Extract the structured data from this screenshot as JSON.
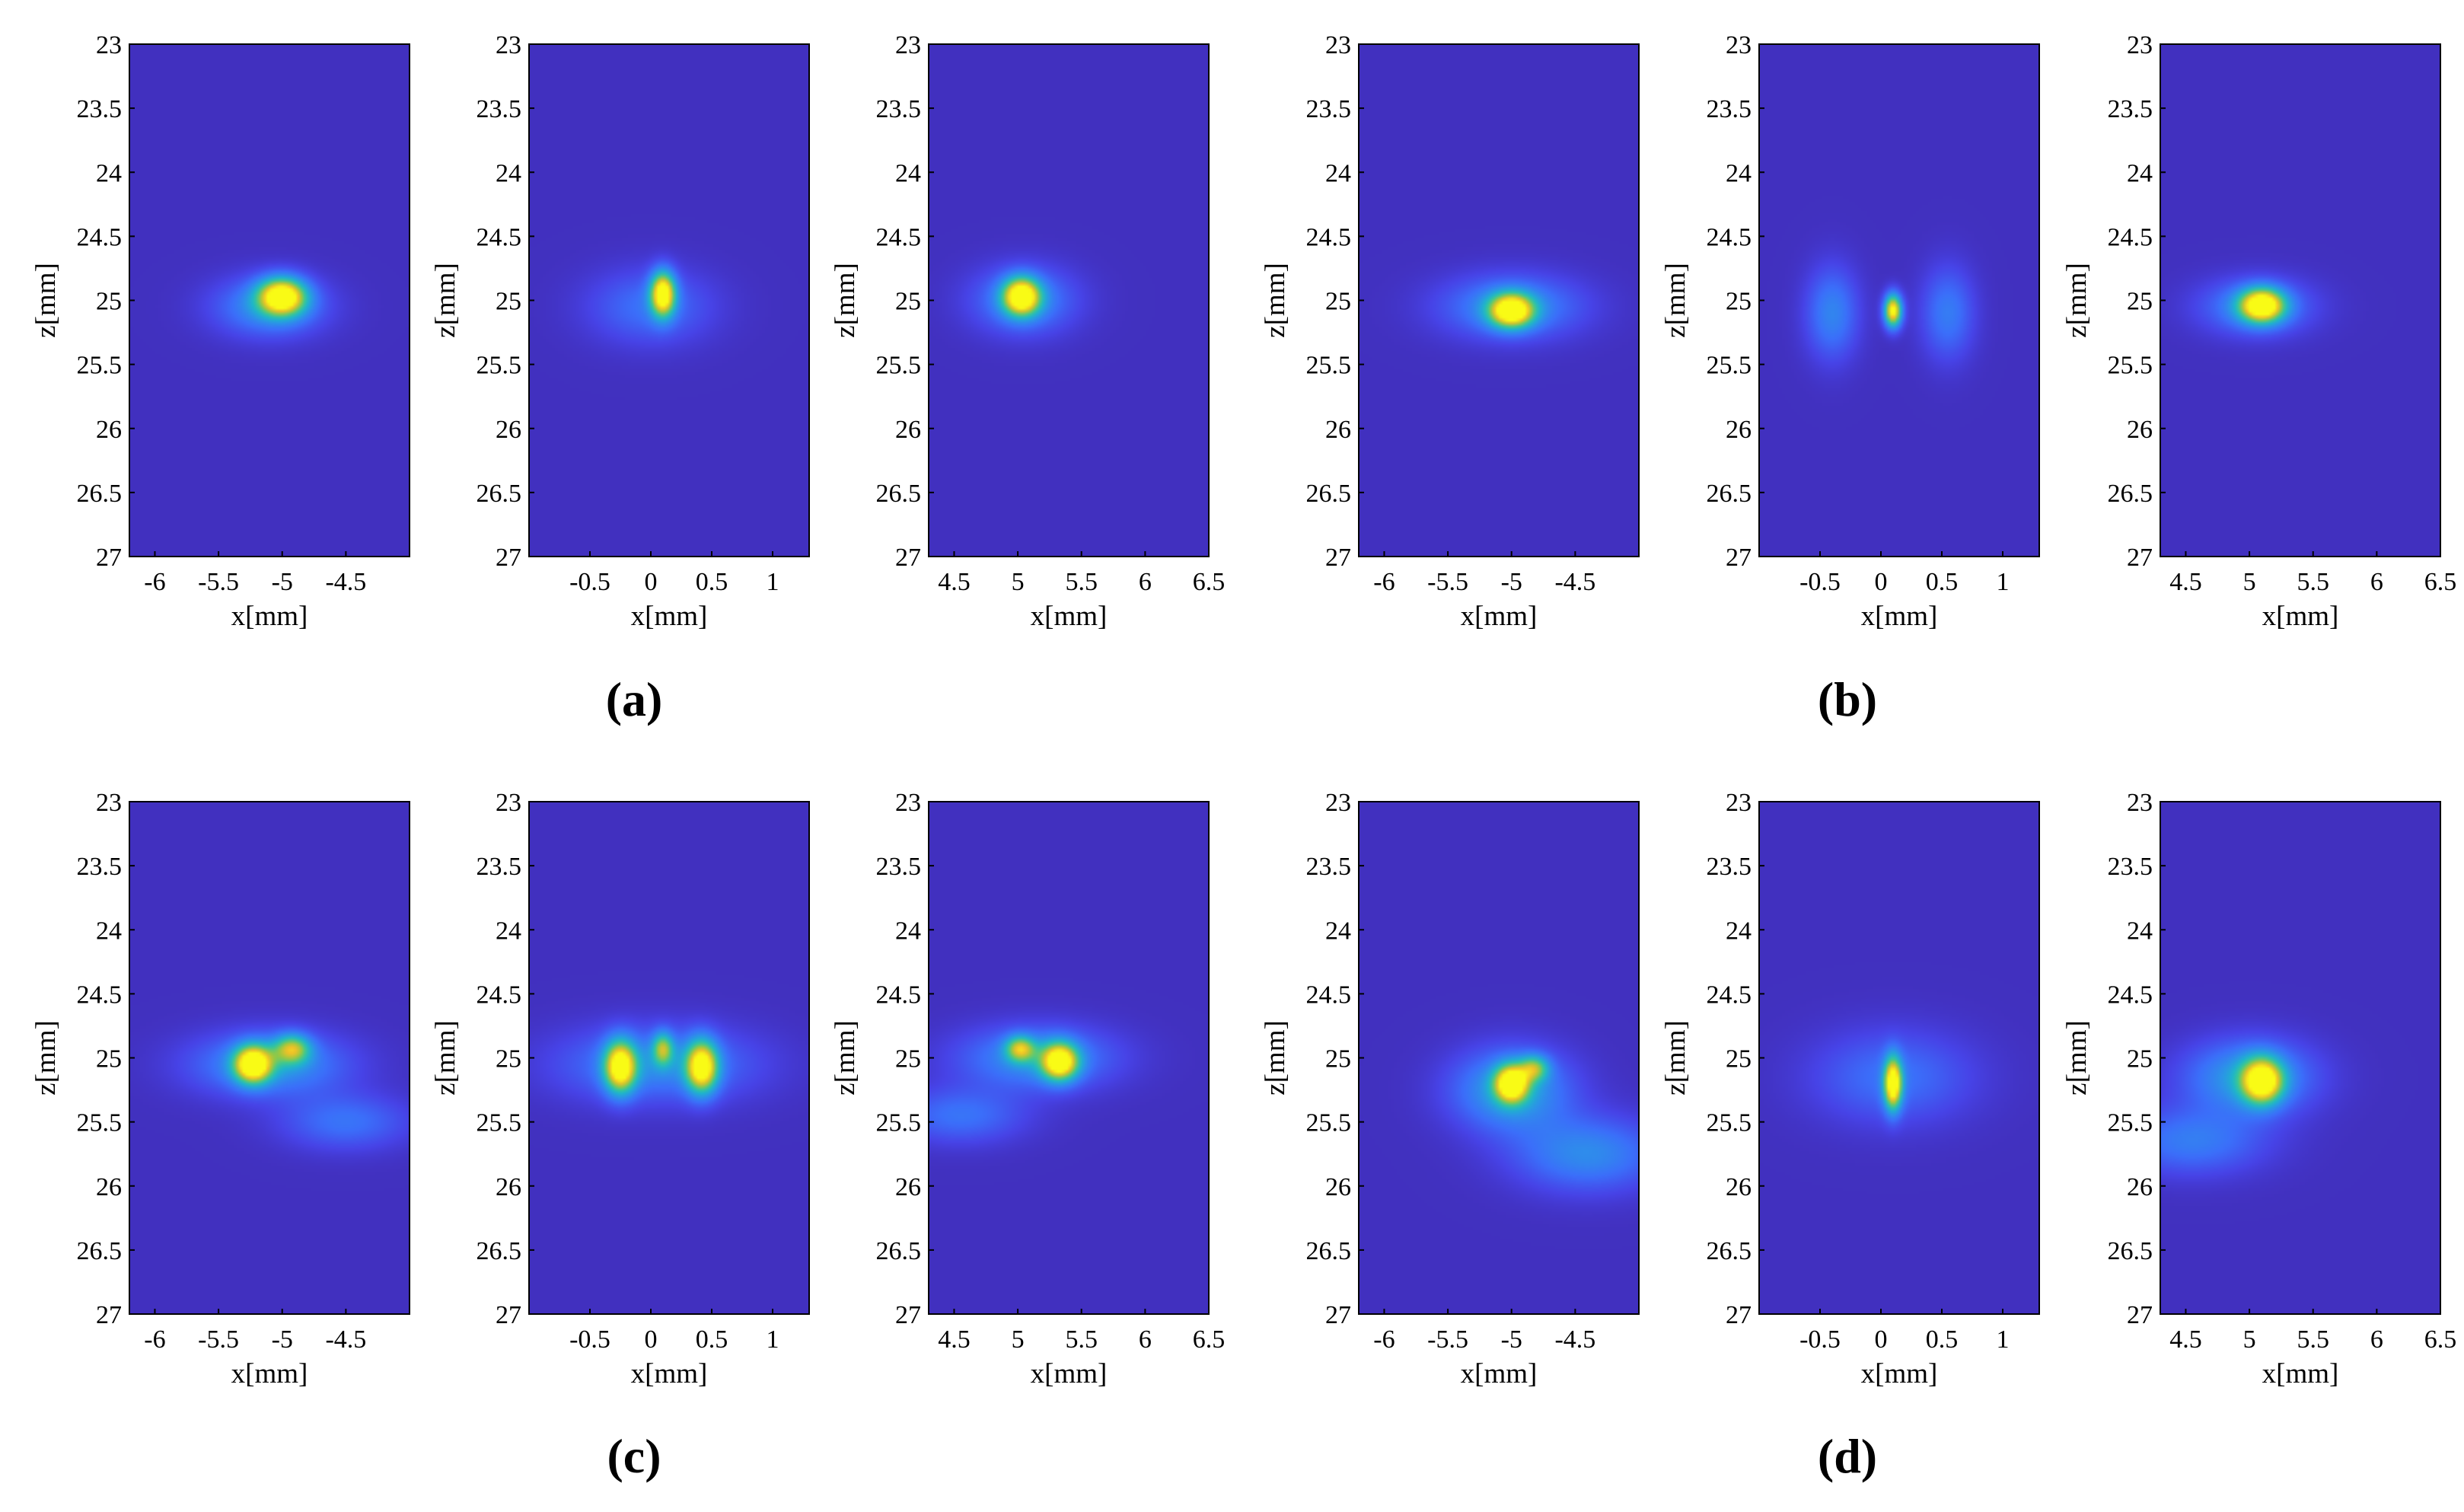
{
  "figure": {
    "captions": [
      "(a)",
      "(b)",
      "(c)",
      "(d)"
    ]
  },
  "colormap": [
    "#3e26a8",
    "#4743e7",
    "#3b6ffa",
    "#2c93e8",
    "#1eb5cb",
    "#3dc891",
    "#9cc83f",
    "#f0c128",
    "#f9fb15"
  ],
  "chart_data": [
    {
      "type": "heatmap",
      "id": "a1",
      "row": 0,
      "col": 0,
      "xlabel": "x[mm]",
      "ylabel": "z[mm]",
      "xlim": [
        -6.2,
        -4.0
      ],
      "ylim": [
        23,
        27
      ],
      "xticks": [
        -6,
        -5.5,
        -5,
        -4.5
      ],
      "xtick_labels": [
        "-6",
        "-5.5",
        "-5",
        "-4.5"
      ],
      "yticks": [
        23,
        23.5,
        24,
        24.5,
        25,
        25.5,
        26,
        26.5,
        27
      ],
      "ytick_labels": [
        "23",
        "23.5",
        "24",
        "24.5",
        "25",
        "25.5",
        "26",
        "26.5",
        "27"
      ],
      "peaks": [
        {
          "x": -5.0,
          "z": 24.97,
          "sx": 0.13,
          "sz": 0.1,
          "amp": 1.0
        },
        {
          "x": -5.1,
          "z": 25.05,
          "sx": 0.3,
          "sz": 0.16,
          "amp": 0.32
        }
      ]
    },
    {
      "type": "heatmap",
      "id": "a2",
      "row": 0,
      "col": 1,
      "xlabel": "x[mm]",
      "ylabel": "z[mm]",
      "xlim": [
        -1.0,
        1.3
      ],
      "ylim": [
        23,
        27
      ],
      "xticks": [
        -0.5,
        0,
        0.5,
        1
      ],
      "xtick_labels": [
        "-0.5",
        "0",
        "0.5",
        "1"
      ],
      "yticks": [
        23,
        23.5,
        24,
        24.5,
        25,
        25.5,
        26,
        26.5,
        27
      ],
      "ytick_labels": [
        "23",
        "23.5",
        "24",
        "24.5",
        "25",
        "25.5",
        "26",
        "26.5",
        "27"
      ],
      "peaks": [
        {
          "x": 0.1,
          "z": 24.95,
          "sx": 0.07,
          "sz": 0.12,
          "amp": 1.0
        },
        {
          "x": 0.0,
          "z": 25.05,
          "sx": 0.35,
          "sz": 0.2,
          "amp": 0.22
        }
      ]
    },
    {
      "type": "heatmap",
      "id": "a3",
      "row": 0,
      "col": 2,
      "xlabel": "x[mm]",
      "ylabel": "z[mm]",
      "xlim": [
        4.3,
        6.5
      ],
      "ylim": [
        23,
        27
      ],
      "xticks": [
        4.5,
        5,
        5.5,
        6,
        6.5
      ],
      "xtick_labels": [
        "4.5",
        "5",
        "5.5",
        "6",
        "6.5"
      ],
      "yticks": [
        23,
        23.5,
        24,
        24.5,
        25,
        25.5,
        26,
        26.5,
        27
      ],
      "ytick_labels": [
        "23",
        "23.5",
        "24",
        "24.5",
        "25",
        "25.5",
        "26",
        "26.5",
        "27"
      ],
      "peaks": [
        {
          "x": 5.03,
          "z": 24.97,
          "sx": 0.1,
          "sz": 0.1,
          "amp": 1.0
        },
        {
          "x": 5.05,
          "z": 25.0,
          "sx": 0.28,
          "sz": 0.18,
          "amp": 0.3
        }
      ]
    },
    {
      "type": "heatmap",
      "id": "b1",
      "row": 0,
      "col": 3,
      "xlabel": "x[mm]",
      "ylabel": "z[mm]",
      "xlim": [
        -6.2,
        -4.0
      ],
      "ylim": [
        23,
        27
      ],
      "xticks": [
        -6,
        -5.5,
        -5,
        -4.5
      ],
      "xtick_labels": [
        "-6",
        "-5.5",
        "-5",
        "-4.5"
      ],
      "yticks": [
        23,
        23.5,
        24,
        24.5,
        25,
        25.5,
        26,
        26.5,
        27
      ],
      "ytick_labels": [
        "23",
        "23.5",
        "24",
        "24.5",
        "25",
        "25.5",
        "26",
        "26.5",
        "27"
      ],
      "peaks": [
        {
          "x": -5.0,
          "z": 25.08,
          "sx": 0.12,
          "sz": 0.09,
          "amp": 1.0
        },
        {
          "x": -5.0,
          "z": 25.05,
          "sx": 0.38,
          "sz": 0.17,
          "amp": 0.32
        }
      ]
    },
    {
      "type": "heatmap",
      "id": "b2",
      "row": 0,
      "col": 4,
      "xlabel": "x[mm]",
      "ylabel": "z[mm]",
      "xlim": [
        -1.0,
        1.3
      ],
      "ylim": [
        23,
        27
      ],
      "xticks": [
        -0.5,
        0,
        0.5,
        1
      ],
      "xtick_labels": [
        "-0.5",
        "0",
        "0.5",
        "1"
      ],
      "yticks": [
        23,
        23.5,
        24,
        24.5,
        25,
        25.5,
        26,
        26.5,
        27
      ],
      "ytick_labels": [
        "23",
        "23.5",
        "24",
        "24.5",
        "25",
        "25.5",
        "26",
        "26.5",
        "27"
      ],
      "peaks": [
        {
          "x": 0.1,
          "z": 25.08,
          "sx": 0.05,
          "sz": 0.09,
          "amp": 1.0
        },
        {
          "x": -0.4,
          "z": 25.1,
          "sx": 0.15,
          "sz": 0.25,
          "amp": 0.28
        },
        {
          "x": 0.55,
          "z": 25.1,
          "sx": 0.15,
          "sz": 0.25,
          "amp": 0.25
        }
      ]
    },
    {
      "type": "heatmap",
      "id": "b3",
      "row": 0,
      "col": 5,
      "xlabel": "x[mm]",
      "ylabel": "z[mm]",
      "xlim": [
        4.3,
        6.5
      ],
      "ylim": [
        23,
        27
      ],
      "xticks": [
        4.5,
        5,
        5.5,
        6,
        6.5
      ],
      "xtick_labels": [
        "4.5",
        "5",
        "5.5",
        "6",
        "6.5"
      ],
      "yticks": [
        23,
        23.5,
        24,
        24.5,
        25,
        25.5,
        26,
        26.5,
        27
      ],
      "ytick_labels": [
        "23",
        "23.5",
        "24",
        "24.5",
        "25",
        "25.5",
        "26",
        "26.5",
        "27"
      ],
      "peaks": [
        {
          "x": 5.1,
          "z": 25.04,
          "sx": 0.12,
          "sz": 0.09,
          "amp": 1.0
        },
        {
          "x": 5.05,
          "z": 25.05,
          "sx": 0.3,
          "sz": 0.15,
          "amp": 0.3
        }
      ]
    },
    {
      "type": "heatmap",
      "id": "c1",
      "row": 1,
      "col": 0,
      "xlabel": "x[mm]",
      "ylabel": "z[mm]",
      "xlim": [
        -6.2,
        -4.0
      ],
      "ylim": [
        23,
        27
      ],
      "xticks": [
        -6,
        -5.5,
        -5,
        -4.5
      ],
      "xtick_labels": [
        "-6",
        "-5.5",
        "-5",
        "-4.5"
      ],
      "yticks": [
        23,
        23.5,
        24,
        24.5,
        25,
        25.5,
        26,
        26.5,
        27
      ],
      "ytick_labels": [
        "23",
        "23.5",
        "24",
        "24.5",
        "25",
        "25.5",
        "26",
        "26.5",
        "27"
      ],
      "peaks": [
        {
          "x": -5.23,
          "z": 25.05,
          "sx": 0.1,
          "sz": 0.1,
          "amp": 1.0
        },
        {
          "x": -4.92,
          "z": 24.93,
          "sx": 0.1,
          "sz": 0.08,
          "amp": 0.6
        },
        {
          "x": -5.1,
          "z": 25.05,
          "sx": 0.42,
          "sz": 0.17,
          "amp": 0.35
        },
        {
          "x": -4.5,
          "z": 25.5,
          "sx": 0.35,
          "sz": 0.15,
          "amp": 0.22
        }
      ]
    },
    {
      "type": "heatmap",
      "id": "c2",
      "row": 1,
      "col": 1,
      "xlabel": "x[mm]",
      "ylabel": "z[mm]",
      "xlim": [
        -1.0,
        1.3
      ],
      "ylim": [
        23,
        27
      ],
      "xticks": [
        -0.5,
        0,
        0.5,
        1
      ],
      "xtick_labels": [
        "-0.5",
        "0",
        "0.5",
        "1"
      ],
      "yticks": [
        23,
        23.5,
        24,
        24.5,
        25,
        25.5,
        26,
        26.5,
        27
      ],
      "ytick_labels": [
        "23",
        "23.5",
        "24",
        "24.5",
        "25",
        "25.5",
        "26",
        "26.5",
        "27"
      ],
      "peaks": [
        {
          "x": -0.25,
          "z": 25.07,
          "sx": 0.09,
          "sz": 0.14,
          "amp": 0.95
        },
        {
          "x": 0.42,
          "z": 25.07,
          "sx": 0.09,
          "sz": 0.14,
          "amp": 0.95
        },
        {
          "x": 0.1,
          "z": 24.93,
          "sx": 0.06,
          "sz": 0.09,
          "amp": 0.55
        },
        {
          "x": 0.05,
          "z": 25.05,
          "sx": 0.55,
          "sz": 0.2,
          "amp": 0.3
        }
      ]
    },
    {
      "type": "heatmap",
      "id": "c3",
      "row": 1,
      "col": 2,
      "xlabel": "x[mm]",
      "ylabel": "z[mm]",
      "xlim": [
        4.3,
        6.5
      ],
      "ylim": [
        23,
        27
      ],
      "xticks": [
        4.5,
        5,
        5.5,
        6,
        6.5
      ],
      "xtick_labels": [
        "4.5",
        "5",
        "5.5",
        "6",
        "6.5"
      ],
      "yticks": [
        23,
        23.5,
        24,
        24.5,
        25,
        25.5,
        26,
        26.5,
        27
      ],
      "ytick_labels": [
        "23",
        "23.5",
        "24",
        "24.5",
        "25",
        "25.5",
        "26",
        "26.5",
        "27"
      ],
      "peaks": [
        {
          "x": 5.33,
          "z": 25.03,
          "sx": 0.1,
          "sz": 0.1,
          "amp": 0.95
        },
        {
          "x": 5.02,
          "z": 24.93,
          "sx": 0.08,
          "sz": 0.07,
          "amp": 0.6
        },
        {
          "x": 5.15,
          "z": 25.0,
          "sx": 0.42,
          "sz": 0.17,
          "amp": 0.33
        },
        {
          "x": 4.55,
          "z": 25.45,
          "sx": 0.35,
          "sz": 0.15,
          "amp": 0.22
        }
      ]
    },
    {
      "type": "heatmap",
      "id": "d1",
      "row": 1,
      "col": 3,
      "xlabel": "x[mm]",
      "ylabel": "z[mm]",
      "xlim": [
        -6.2,
        -4.0
      ],
      "ylim": [
        23,
        27
      ],
      "xticks": [
        -6,
        -5.5,
        -5,
        -4.5
      ],
      "xtick_labels": [
        "-6",
        "-5.5",
        "-5",
        "-4.5"
      ],
      "yticks": [
        23,
        23.5,
        24,
        24.5,
        25,
        25.5,
        26,
        26.5,
        27
      ],
      "ytick_labels": [
        "23",
        "23.5",
        "24",
        "24.5",
        "25",
        "25.5",
        "26",
        "26.5",
        "27"
      ],
      "peaks": [
        {
          "x": -5.0,
          "z": 25.2,
          "sx": 0.09,
          "sz": 0.1,
          "amp": 0.95
        },
        {
          "x": -4.82,
          "z": 25.08,
          "sx": 0.08,
          "sz": 0.07,
          "amp": 0.5
        },
        {
          "x": -5.0,
          "z": 25.25,
          "sx": 0.32,
          "sz": 0.22,
          "amp": 0.4
        },
        {
          "x": -4.4,
          "z": 25.75,
          "sx": 0.4,
          "sz": 0.2,
          "amp": 0.3
        }
      ]
    },
    {
      "type": "heatmap",
      "id": "d2",
      "row": 1,
      "col": 4,
      "xlabel": "x[mm]",
      "ylabel": "z[mm]",
      "xlim": [
        -1.0,
        1.3
      ],
      "ylim": [
        23,
        27
      ],
      "xticks": [
        -0.5,
        0,
        0.5,
        1
      ],
      "xtick_labels": [
        "-0.5",
        "0",
        "0.5",
        "1"
      ],
      "yticks": [
        23,
        23.5,
        24,
        24.5,
        25,
        25.5,
        26,
        26.5,
        27
      ],
      "ytick_labels": [
        "23",
        "23.5",
        "24",
        "24.5",
        "25",
        "25.5",
        "26",
        "26.5",
        "27"
      ],
      "peaks": [
        {
          "x": 0.1,
          "z": 25.2,
          "sx": 0.05,
          "sz": 0.14,
          "amp": 1.0
        },
        {
          "x": 0.1,
          "z": 25.15,
          "sx": 0.45,
          "sz": 0.25,
          "amp": 0.22
        }
      ]
    },
    {
      "type": "heatmap",
      "id": "d3",
      "row": 1,
      "col": 5,
      "xlabel": "x[mm]",
      "ylabel": "z[mm]",
      "xlim": [
        4.3,
        6.5
      ],
      "ylim": [
        23,
        27
      ],
      "xticks": [
        4.5,
        5,
        5.5,
        6,
        6.5
      ],
      "xtick_labels": [
        "4.5",
        "5",
        "5.5",
        "6",
        "6.5"
      ],
      "yticks": [
        23,
        23.5,
        24,
        24.5,
        25,
        25.5,
        26,
        26.5,
        27
      ],
      "ytick_labels": [
        "23",
        "23.5",
        "24",
        "24.5",
        "25",
        "25.5",
        "26",
        "26.5",
        "27"
      ],
      "peaks": [
        {
          "x": 5.1,
          "z": 25.18,
          "sx": 0.11,
          "sz": 0.12,
          "amp": 0.95
        },
        {
          "x": 5.0,
          "z": 25.15,
          "sx": 0.35,
          "sz": 0.2,
          "amp": 0.38
        },
        {
          "x": 4.55,
          "z": 25.65,
          "sx": 0.4,
          "sz": 0.18,
          "amp": 0.25
        }
      ]
    }
  ]
}
